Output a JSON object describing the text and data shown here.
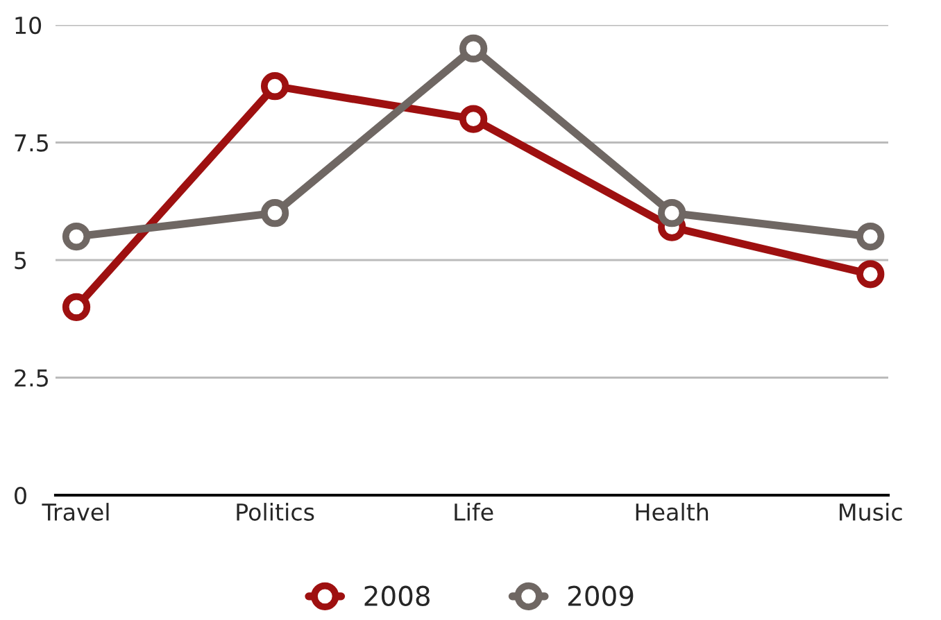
{
  "chart_data": {
    "type": "line",
    "categories": [
      "Travel",
      "Politics",
      "Life",
      "Health",
      "Music"
    ],
    "series": [
      {
        "name": "2008",
        "color": "#9e1010",
        "values": [
          4.0,
          8.7,
          8.0,
          5.7,
          4.7
        ]
      },
      {
        "name": "2009",
        "color": "#6f6763",
        "values": [
          5.5,
          6.0,
          9.5,
          6.0,
          5.5
        ]
      }
    ],
    "ylim": [
      0,
      10
    ],
    "yticks": [
      0,
      2.5,
      5,
      7.5,
      10
    ],
    "grid": "y",
    "legend": "bottom",
    "marker": "circle",
    "line_style": "solid"
  }
}
